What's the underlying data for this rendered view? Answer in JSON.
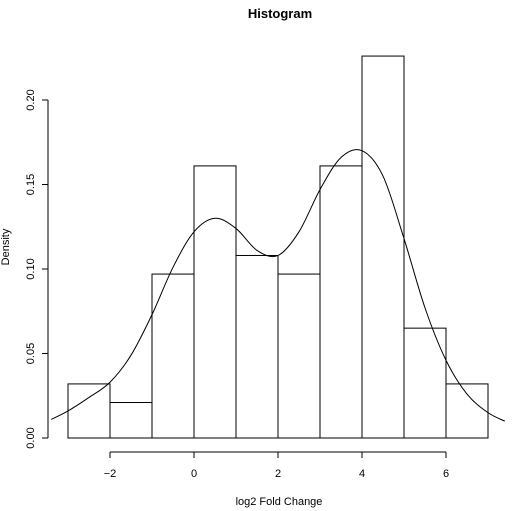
{
  "chart_data": {
    "type": "histogram",
    "title": "Histogram",
    "xlabel": "log2 Fold Change",
    "ylabel": "Density",
    "xlim": [
      -3,
      7
    ],
    "ylim": [
      0,
      0.2
    ],
    "bins": [
      {
        "from": -3,
        "to": -2,
        "density": 0.032
      },
      {
        "from": -2,
        "to": -1,
        "density": 0.021
      },
      {
        "from": -1,
        "to": 0,
        "density": 0.097
      },
      {
        "from": 0,
        "to": 1,
        "density": 0.161
      },
      {
        "from": 1,
        "to": 2,
        "density": 0.108
      },
      {
        "from": 2,
        "to": 3,
        "density": 0.097
      },
      {
        "from": 3,
        "to": 4,
        "density": 0.161
      },
      {
        "from": 4,
        "to": 5,
        "density": 0.226
      },
      {
        "from": 5,
        "to": 6,
        "density": 0.065
      },
      {
        "from": 6,
        "to": 7,
        "density": 0.032
      }
    ],
    "density_curve": {
      "x": [
        -3.4,
        -3.0,
        -2.5,
        -2.0,
        -1.5,
        -1.0,
        -0.5,
        0.0,
        0.5,
        1.0,
        1.5,
        2.0,
        2.5,
        3.0,
        3.5,
        4.0,
        4.5,
        5.0,
        5.5,
        6.0,
        6.5,
        7.0,
        7.4
      ],
      "y": [
        0.011,
        0.016,
        0.024,
        0.033,
        0.049,
        0.073,
        0.101,
        0.122,
        0.13,
        0.124,
        0.111,
        0.108,
        0.122,
        0.147,
        0.166,
        0.17,
        0.155,
        0.118,
        0.077,
        0.046,
        0.026,
        0.015,
        0.01
      ]
    },
    "x_ticks": [
      -2,
      0,
      2,
      4,
      6
    ],
    "x_tick_labels": [
      "−2",
      "0",
      "2",
      "4",
      "6"
    ],
    "y_ticks": [
      0.0,
      0.05,
      0.1,
      0.15,
      0.2
    ],
    "y_tick_labels": [
      "0.00",
      "0.05",
      "0.10",
      "0.15",
      "0.20"
    ],
    "grid": false,
    "colors": {
      "bar_fill": "#ffffff",
      "bar_stroke": "#000000",
      "curve": "#000000"
    }
  }
}
